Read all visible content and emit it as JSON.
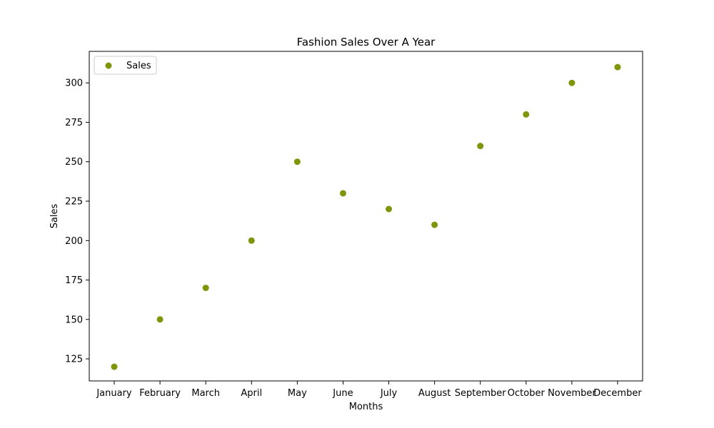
{
  "chart_data": {
    "type": "scatter",
    "title": "Fashion Sales Over A Year",
    "xlabel": "Months",
    "ylabel": "Sales",
    "categories": [
      "January",
      "February",
      "March",
      "April",
      "May",
      "June",
      "July",
      "August",
      "September",
      "October",
      "November",
      "December"
    ],
    "series": [
      {
        "name": "Sales",
        "color": "#7f950a",
        "values": [
          120,
          150,
          170,
          200,
          250,
          230,
          220,
          210,
          260,
          280,
          300,
          310
        ]
      }
    ],
    "ylim": [
      111,
      320
    ],
    "yticks": [
      125,
      150,
      175,
      200,
      225,
      250,
      275,
      300
    ],
    "grid": false,
    "legend_position": "top-left"
  }
}
